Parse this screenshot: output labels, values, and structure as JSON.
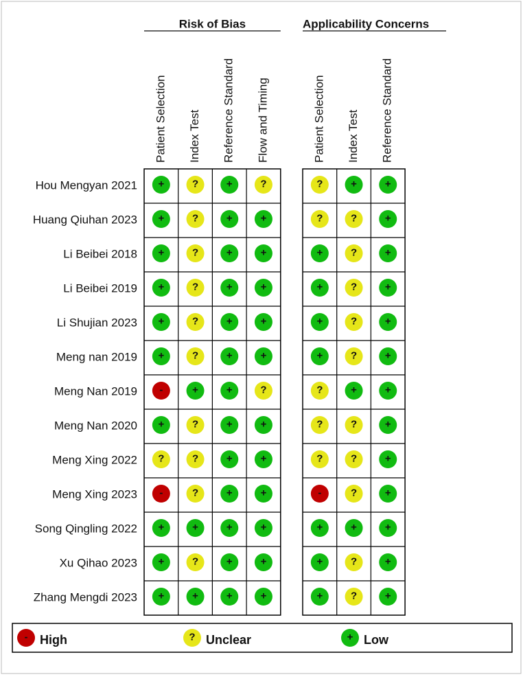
{
  "title_groups": [
    {
      "title": "Risk of Bias",
      "columns": [
        "Patient Selection",
        "Index Test",
        "Reference Standard",
        "Flow and Timing"
      ]
    },
    {
      "title": "Applicability Concerns",
      "columns": [
        "Patient Selection",
        "Index Test",
        "Reference Standard"
      ]
    }
  ],
  "rows": [
    {
      "study": "Hou Mengyan 2021",
      "judgments": [
        [
          "+",
          "?",
          "+",
          "?"
        ],
        [
          "?",
          "+",
          "+"
        ]
      ]
    },
    {
      "study": "Huang Qiuhan 2023",
      "judgments": [
        [
          "+",
          "?",
          "+",
          "+"
        ],
        [
          "?",
          "?",
          "+"
        ]
      ]
    },
    {
      "study": "Li Beibei 2018",
      "judgments": [
        [
          "+",
          "?",
          "+",
          "+"
        ],
        [
          "+",
          "?",
          "+"
        ]
      ]
    },
    {
      "study": "Li Beibei 2019",
      "judgments": [
        [
          "+",
          "?",
          "+",
          "+"
        ],
        [
          "+",
          "?",
          "+"
        ]
      ]
    },
    {
      "study": "Li Shujian 2023",
      "judgments": [
        [
          "+",
          "?",
          "+",
          "+"
        ],
        [
          "+",
          "?",
          "+"
        ]
      ]
    },
    {
      "study": "Meng nan 2019",
      "judgments": [
        [
          "+",
          "?",
          "+",
          "+"
        ],
        [
          "+",
          "?",
          "+"
        ]
      ]
    },
    {
      "study": "Meng Nan 2019",
      "judgments": [
        [
          "-",
          "+",
          "+",
          "?"
        ],
        [
          "?",
          "+",
          "+"
        ]
      ]
    },
    {
      "study": "Meng Nan 2020",
      "judgments": [
        [
          "+",
          "?",
          "+",
          "+"
        ],
        [
          "?",
          "?",
          "+"
        ]
      ]
    },
    {
      "study": "Meng Xing 2022",
      "judgments": [
        [
          "?",
          "?",
          "+",
          "+"
        ],
        [
          "?",
          "?",
          "+"
        ]
      ]
    },
    {
      "study": "Meng Xing 2023",
      "judgments": [
        [
          "-",
          "?",
          "+",
          "+"
        ],
        [
          "-",
          "?",
          "+"
        ]
      ]
    },
    {
      "study": "Song Qingling 2022",
      "judgments": [
        [
          "+",
          "+",
          "+",
          "+"
        ],
        [
          "+",
          "+",
          "+"
        ]
      ]
    },
    {
      "study": "Xu Qihao 2023",
      "judgments": [
        [
          "+",
          "?",
          "+",
          "+"
        ],
        [
          "+",
          "?",
          "+"
        ]
      ]
    },
    {
      "study": "Zhang Mengdi 2023",
      "judgments": [
        [
          "+",
          "+",
          "+",
          "+"
        ],
        [
          "+",
          "?",
          "+"
        ]
      ]
    }
  ],
  "legend": [
    {
      "symbol": "-",
      "label": "High",
      "color": "#c00000"
    },
    {
      "symbol": "?",
      "label": "Unclear",
      "color": "#e6e619"
    },
    {
      "symbol": "+",
      "label": "Low",
      "color": "#11bb11"
    }
  ]
}
